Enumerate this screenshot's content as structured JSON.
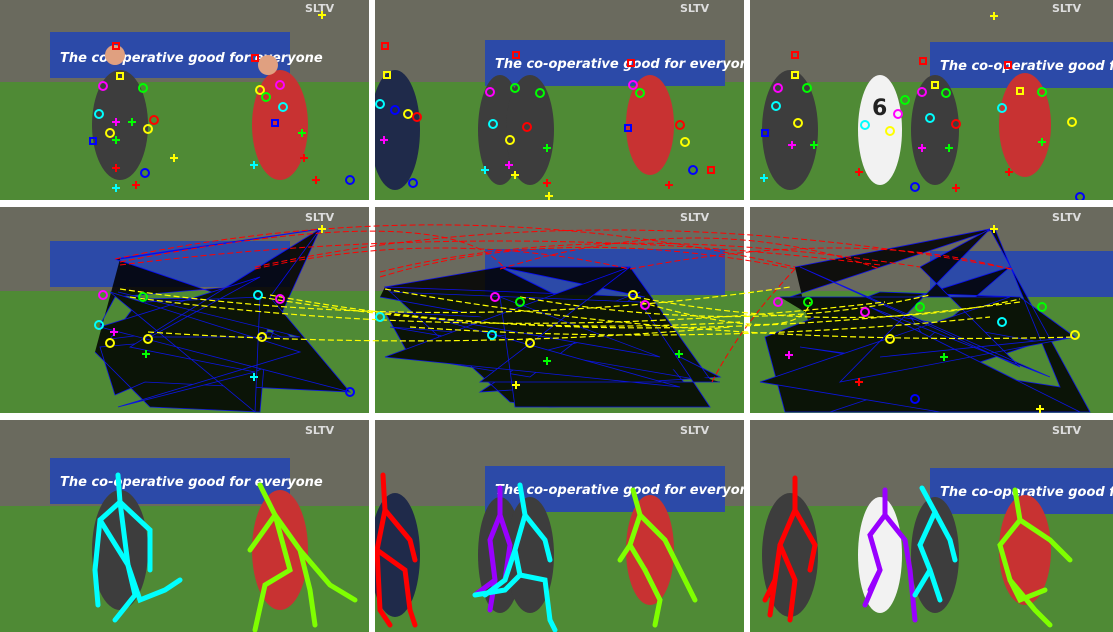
{
  "figure": {
    "logo_text": "SLTV",
    "banner_text": "The co-operative good for everyone",
    "rows": [
      "detections",
      "graph",
      "skeletons"
    ],
    "frames": 3
  },
  "colors": {
    "background": "#ffffff",
    "grass": "#4f8a35",
    "stand": "#6a6a5e",
    "banner": "#2c4aa8",
    "detection_palette": [
      "#ff0000",
      "#ffff00",
      "#ff00ff",
      "#00ff00",
      "#00ffff",
      "#0000ff"
    ],
    "graph_edges": "#0000ff",
    "temporal_edges_red": "#ff0000",
    "temporal_edges_yellow": "#ffff00",
    "skeleton_colors": [
      "#00ffff",
      "#7fff00",
      "#ff0000",
      "#9900ff",
      "#00ffff",
      "#7fff00"
    ]
  }
}
